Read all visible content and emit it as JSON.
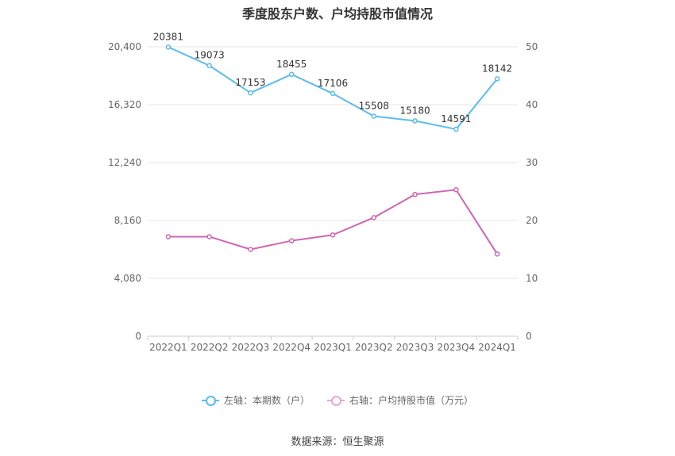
{
  "chart_data": {
    "type": "line",
    "title": "季度股东户数、户均持股市值情况",
    "categories": [
      "2022Q1",
      "2022Q2",
      "2022Q3",
      "2022Q4",
      "2023Q1",
      "2023Q2",
      "2023Q3",
      "2023Q4",
      "2024Q1"
    ],
    "left_axis": {
      "ylim": [
        0,
        20400
      ],
      "ticks": [
        "0",
        "4,080",
        "8,160",
        "12,240",
        "16,320",
        "20,400"
      ]
    },
    "right_axis": {
      "ylim": [
        0,
        50
      ],
      "ticks": [
        "0",
        "10",
        "20",
        "30",
        "40",
        "50"
      ]
    },
    "grid": true,
    "legend_position": "bottom",
    "series": [
      {
        "name": "左轴：本期数（户）",
        "axis": "left",
        "color": "#5bbcee",
        "values": [
          20381,
          19073,
          17153,
          18455,
          17106,
          15508,
          15180,
          14591,
          18142
        ],
        "labels": [
          "20381",
          "19073",
          "17153",
          "18455",
          "17106",
          "15508",
          "15180",
          "14591",
          "18142"
        ]
      },
      {
        "name": "右轴：户均持股市值（万元）",
        "axis": "right",
        "color": "#d065b3",
        "values": [
          17.2,
          17.2,
          15.0,
          16.5,
          17.5,
          20.5,
          24.5,
          25.3,
          14.2
        ]
      }
    ],
    "source": "数据来源：恒生聚源"
  }
}
